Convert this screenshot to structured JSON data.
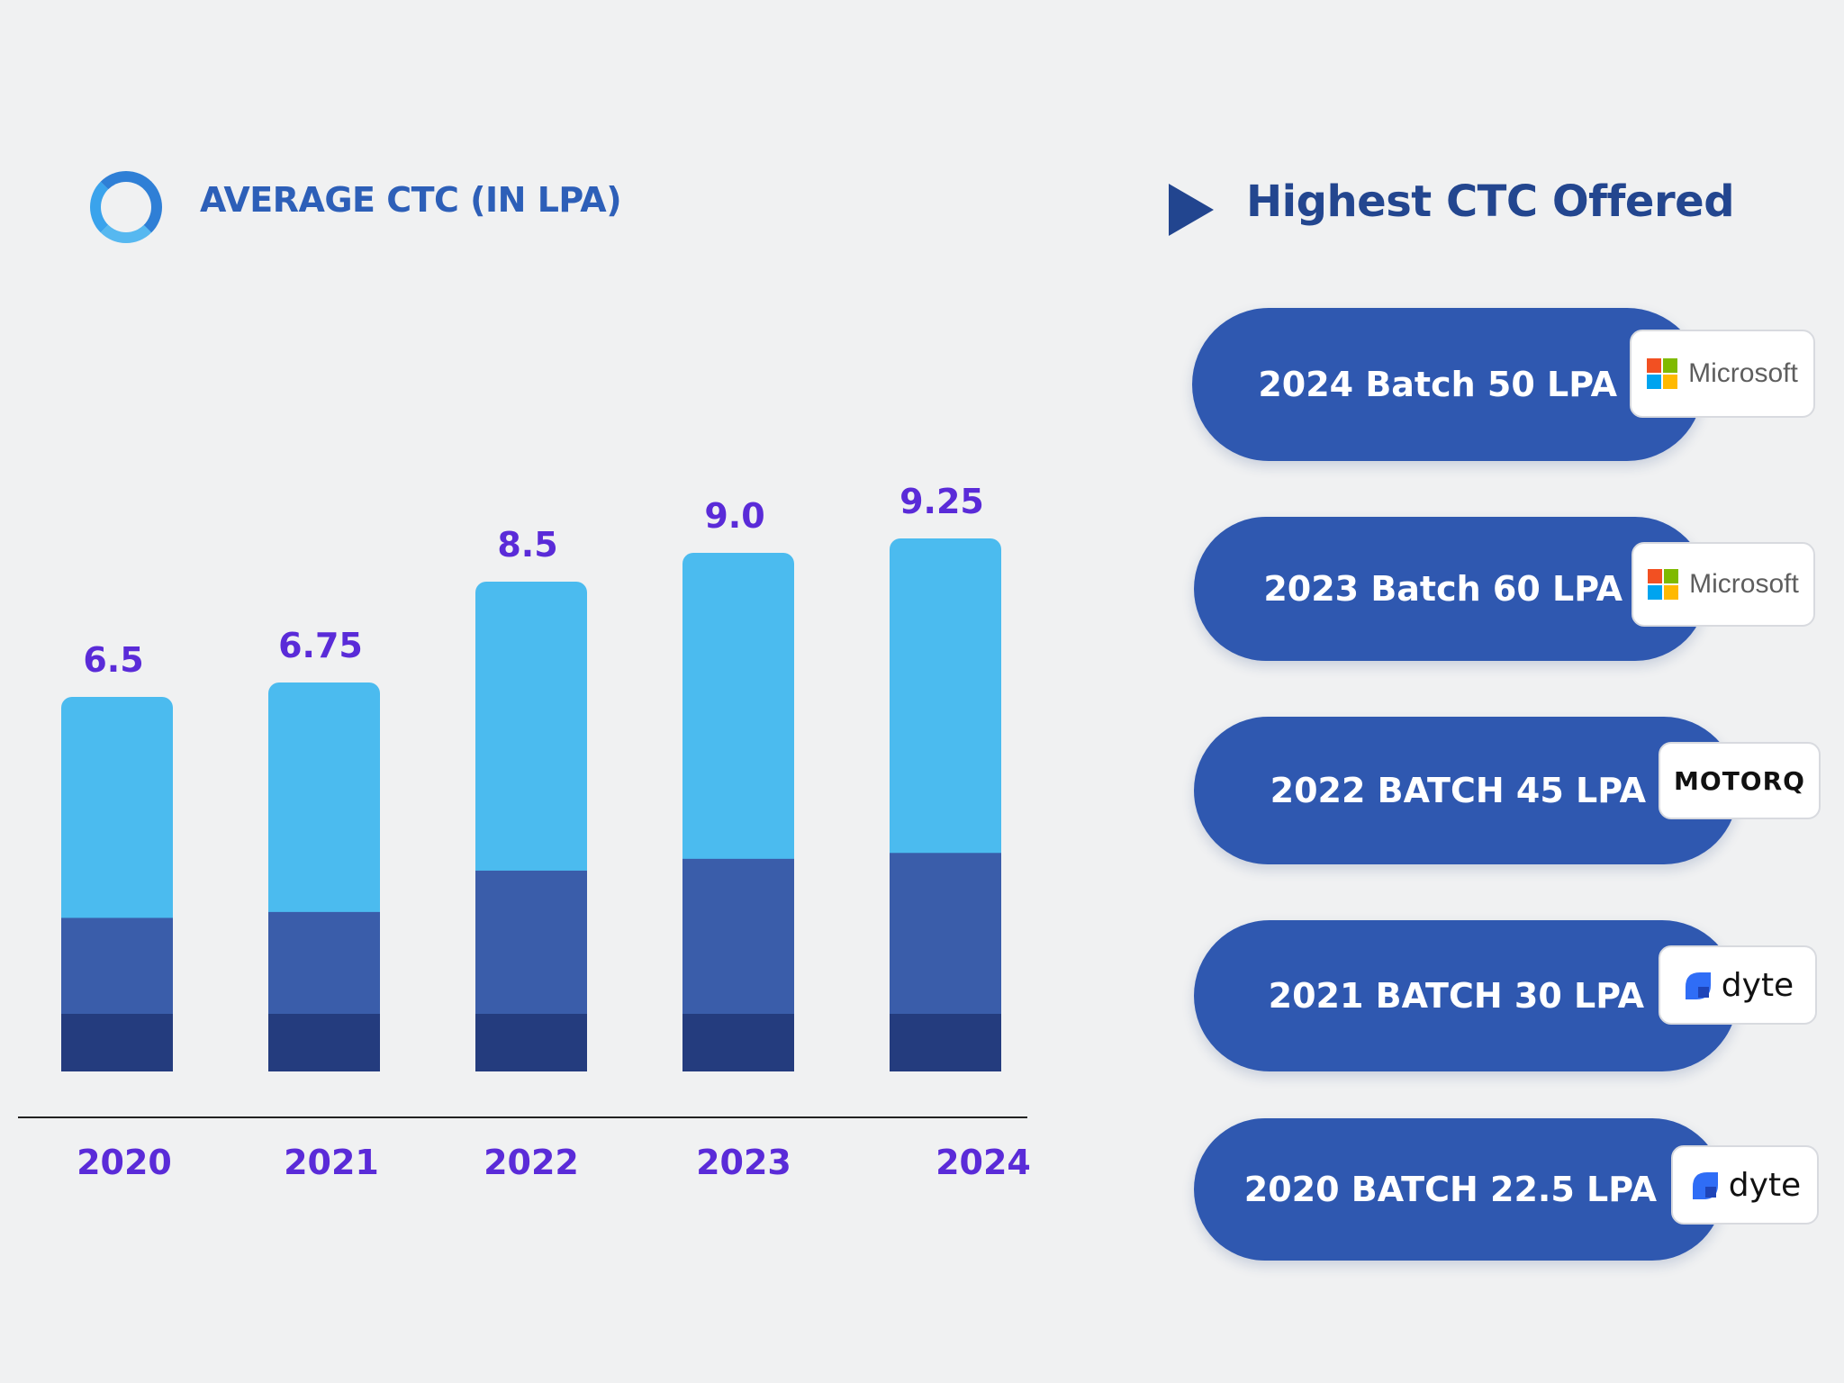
{
  "left_panel": {
    "title": "AVERAGE CTC (IN LPA)"
  },
  "chart_data": {
    "type": "bar",
    "categories": [
      "2020",
      "2021",
      "2022",
      "2023",
      "2024"
    ],
    "values": [
      6.5,
      6.75,
      8.5,
      9.0,
      9.25
    ],
    "data_labels": [
      "6.5",
      "6.75",
      "8.5",
      "9.0",
      "9.25"
    ],
    "title": "AVERAGE CTC (IN LPA)",
    "xlabel": "",
    "ylabel": "",
    "grid": false,
    "legend": "none",
    "colors": {
      "top": "#4bbbef",
      "middle": "#3a5daa",
      "bottom": "#243c7e",
      "label": "#5a2bd8",
      "axis": "#222222"
    }
  },
  "right_panel": {
    "title": "Highest CTC Offered",
    "offers": [
      {
        "label": "2024 Batch 50 LPA",
        "logo": "microsoft",
        "logo_text": "Microsoft"
      },
      {
        "label": "2023 Batch 60 LPA",
        "logo": "microsoft",
        "logo_text": "Microsoft"
      },
      {
        "label": "2022 BATCH 45 LPA",
        "logo": "motorq",
        "logo_text": "MOTORQ"
      },
      {
        "label": "2021 BATCH 30 LPA",
        "logo": "dyte",
        "logo_text": "dyte"
      },
      {
        "label": "2020 BATCH 22.5 LPA",
        "logo": "dyte",
        "logo_text": "dyte"
      }
    ]
  }
}
